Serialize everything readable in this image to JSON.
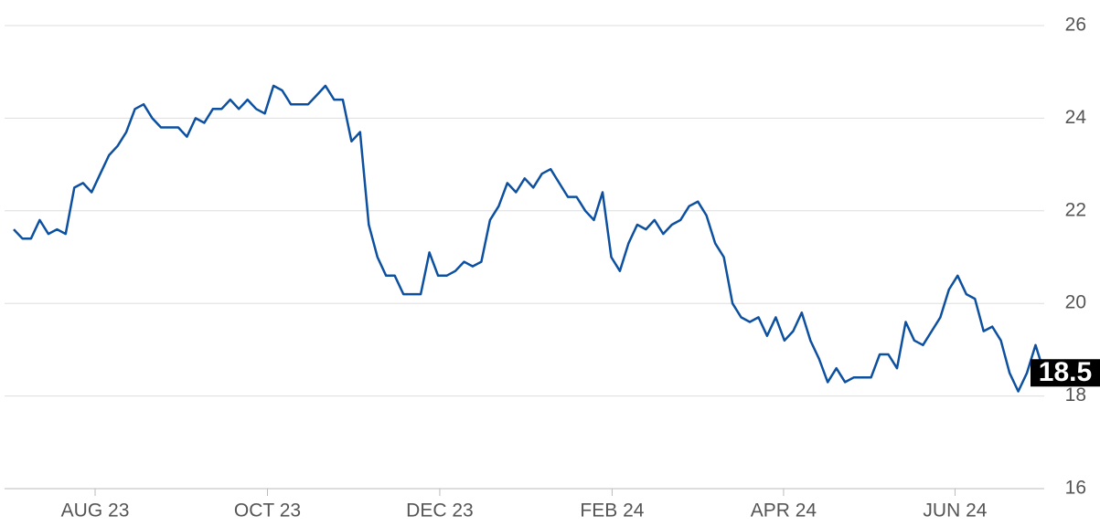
{
  "chart_data": {
    "type": "line",
    "series": [
      {
        "color": "#0d50a0",
        "values": [
          21.6,
          21.4,
          21.4,
          21.8,
          21.5,
          21.6,
          21.5,
          22.5,
          22.6,
          22.4,
          22.8,
          23.2,
          23.4,
          23.7,
          24.2,
          24.3,
          24.0,
          23.8,
          23.8,
          23.8,
          23.6,
          24.0,
          23.9,
          24.2,
          24.2,
          24.4,
          24.2,
          24.4,
          24.2,
          24.1,
          24.7,
          24.6,
          24.3,
          24.3,
          24.3,
          24.5,
          24.7,
          24.4,
          24.4,
          23.5,
          23.7,
          21.7,
          21.0,
          20.6,
          20.6,
          20.2,
          20.2,
          20.2,
          21.1,
          20.6,
          20.6,
          20.7,
          20.9,
          20.8,
          20.9,
          21.8,
          22.1,
          22.6,
          22.4,
          22.7,
          22.5,
          22.8,
          22.9,
          22.6,
          22.3,
          22.3,
          22.0,
          21.8,
          22.4,
          21.0,
          20.7,
          21.3,
          21.7,
          21.6,
          21.8,
          21.5,
          21.7,
          21.8,
          22.1,
          22.2,
          21.9,
          21.3,
          21.0,
          20.0,
          19.7,
          19.6,
          19.7,
          19.3,
          19.7,
          19.2,
          19.4,
          19.8,
          19.2,
          18.8,
          18.3,
          18.6,
          18.3,
          18.4,
          18.4,
          18.4,
          18.9,
          18.9,
          18.6,
          19.6,
          19.2,
          19.1,
          19.4,
          19.7,
          20.3,
          20.6,
          20.2,
          20.1,
          19.4,
          19.5,
          19.2,
          18.5,
          18.1,
          18.5,
          19.1,
          18.5
        ]
      }
    ],
    "xlim": [
      0,
      119
    ],
    "xticks": [
      {
        "value": 9.4,
        "label": "AUG 23"
      },
      {
        "value": 29.3,
        "label": "OCT 23"
      },
      {
        "value": 49.2,
        "label": "DEC 23"
      },
      {
        "value": 69.1,
        "label": "FEB 24"
      },
      {
        "value": 88.9,
        "label": "APR 24"
      },
      {
        "value": 108.7,
        "label": "JUN 24"
      }
    ],
    "ylim": [
      16,
      26
    ],
    "yticks": [
      16,
      18,
      20,
      22,
      24,
      26
    ],
    "grid": true
  }
}
